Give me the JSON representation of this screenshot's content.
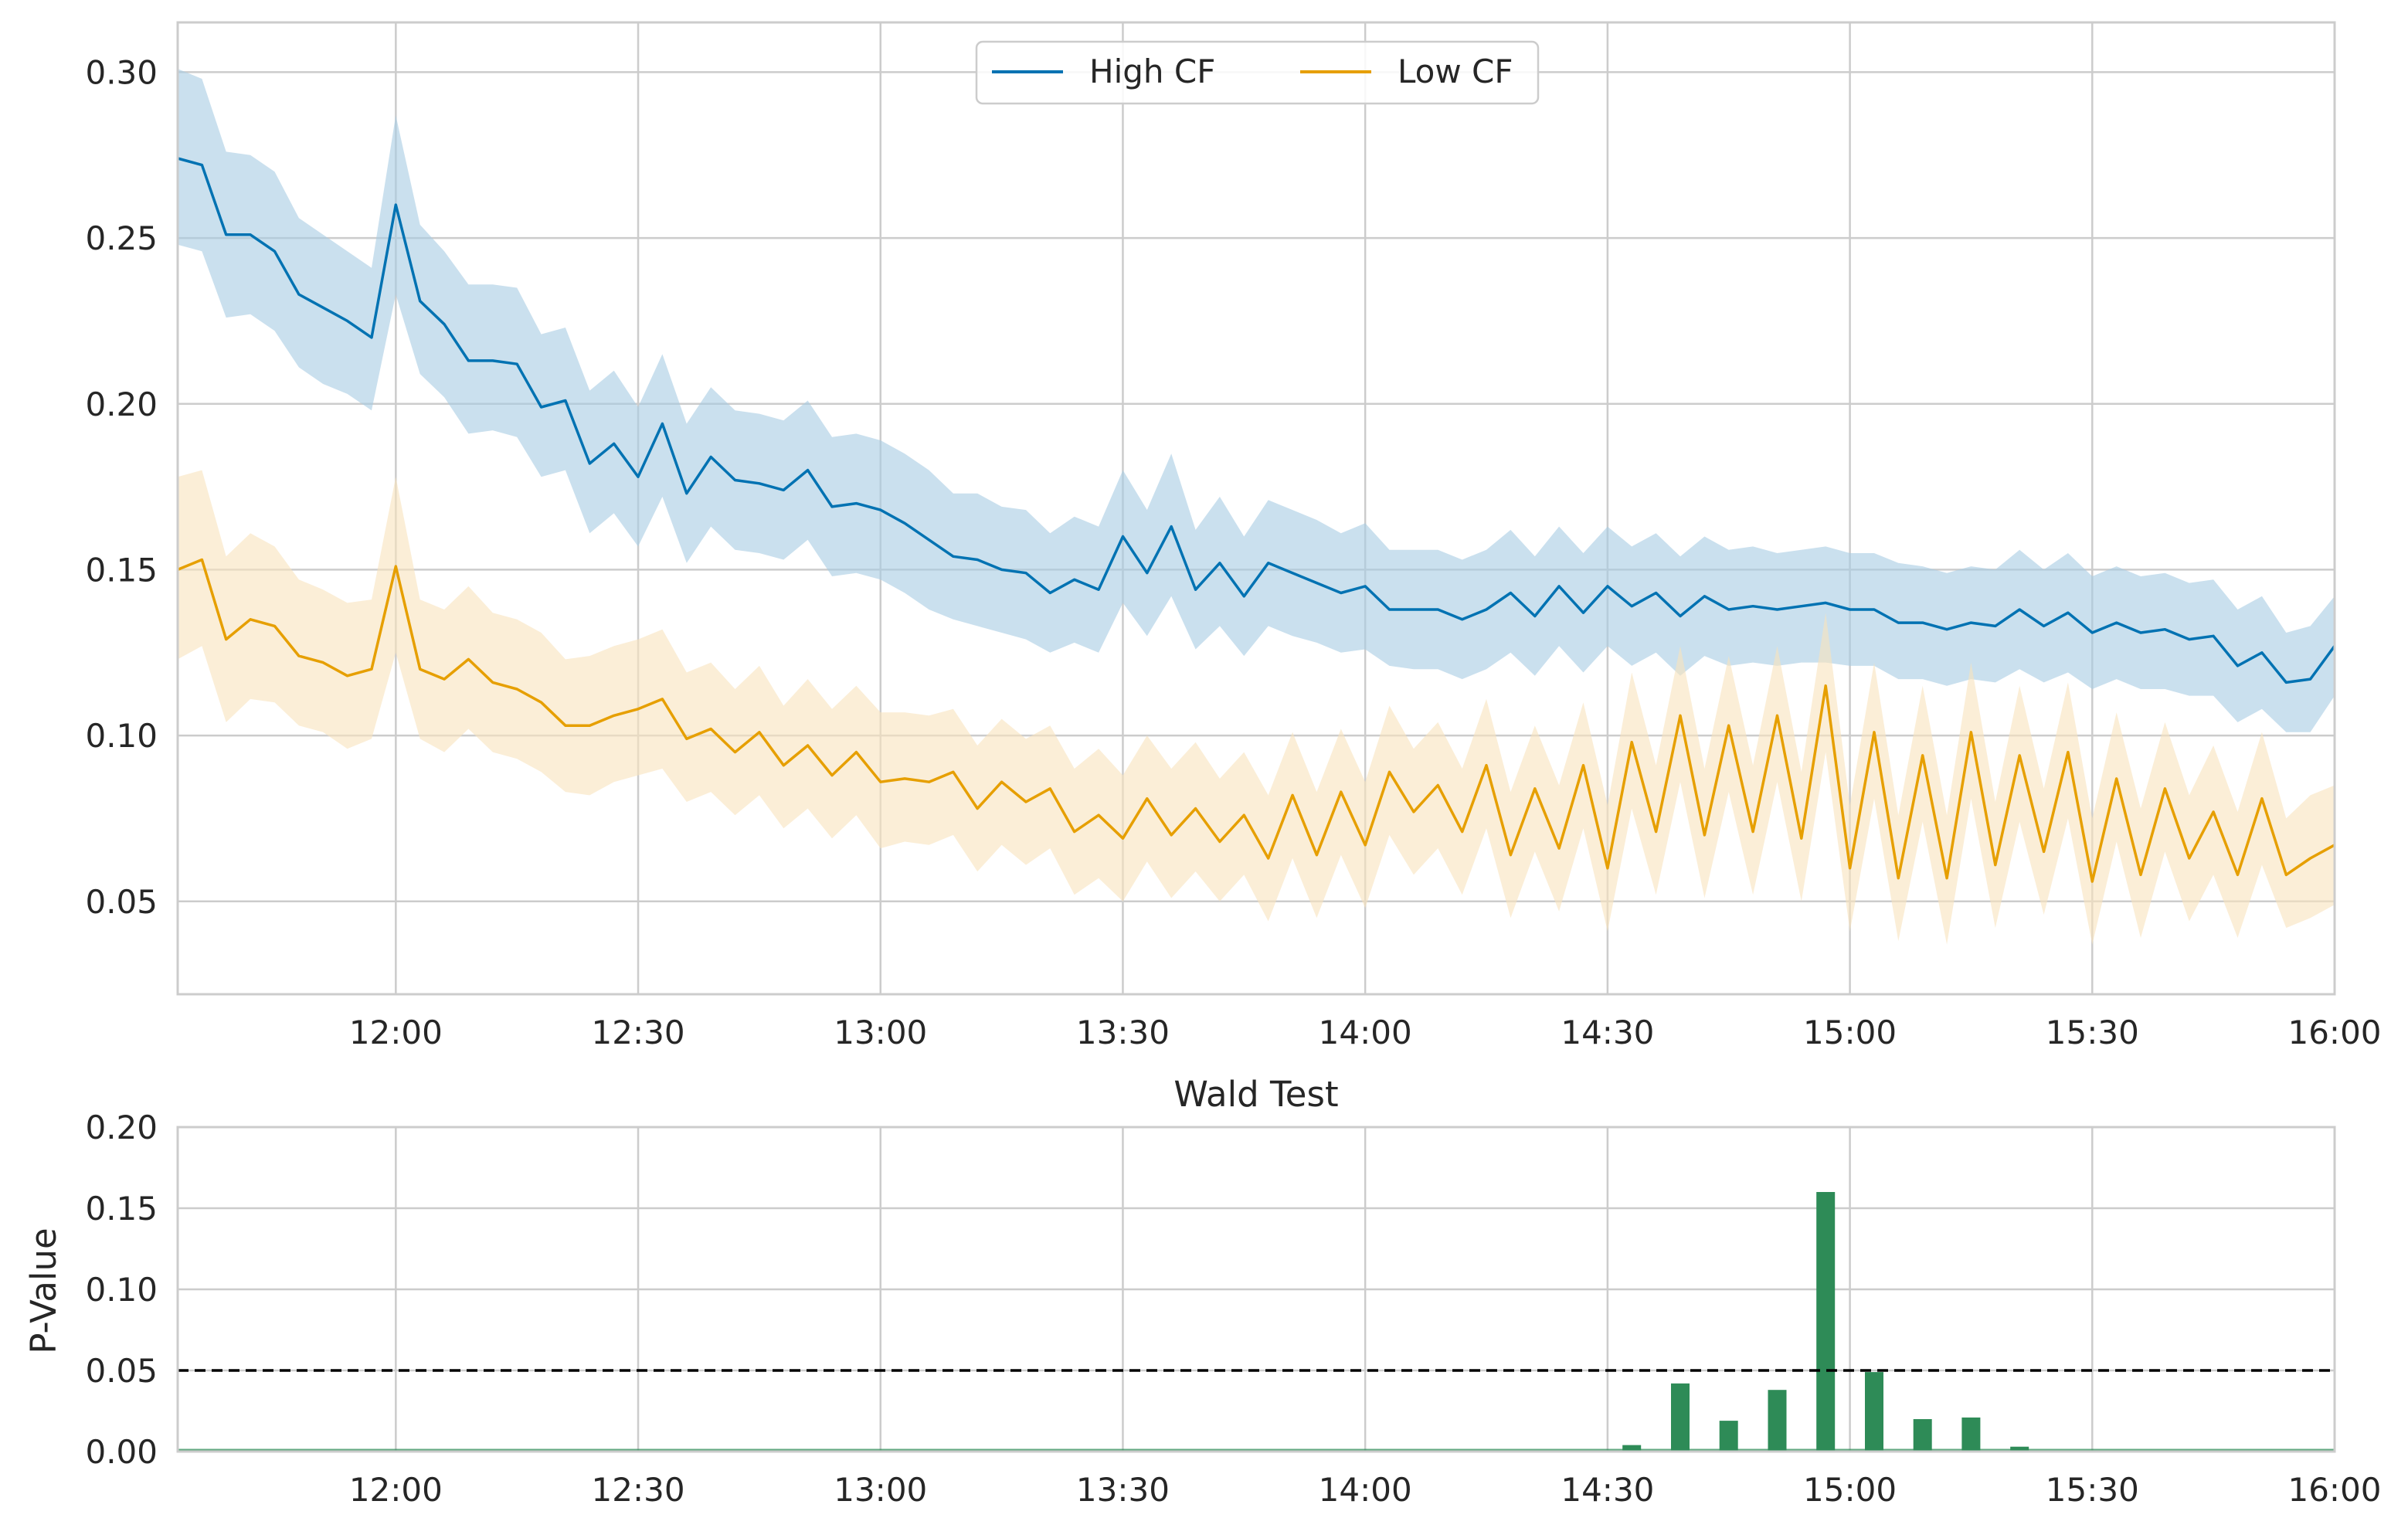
{
  "chart_data": [
    {
      "type": "line",
      "title": "",
      "xlabel": "",
      "ylabel": "",
      "x_range": [
        "11:33",
        "16:00"
      ],
      "ylim": [
        0.022,
        0.315
      ],
      "y_ticks": [
        0.05,
        0.1,
        0.15,
        0.2,
        0.25,
        0.3
      ],
      "y_tick_labels": [
        "0.05",
        "0.10",
        "0.15",
        "0.20",
        "0.25",
        "0.30"
      ],
      "x_ticks": [
        "12:00",
        "12:30",
        "13:00",
        "13:30",
        "14:00",
        "14:30",
        "15:00",
        "15:30",
        "16:00"
      ],
      "grid": true,
      "legend": {
        "placement": "top-center",
        "columns": 2
      },
      "x": [
        "11:33",
        "11:36",
        "11:39",
        "11:42",
        "11:45",
        "11:48",
        "11:51",
        "11:54",
        "11:57",
        "12:00",
        "12:03",
        "12:06",
        "12:09",
        "12:12",
        "12:15",
        "12:18",
        "12:21",
        "12:24",
        "12:27",
        "12:30",
        "12:33",
        "12:36",
        "12:39",
        "12:42",
        "12:45",
        "12:48",
        "12:51",
        "12:54",
        "12:57",
        "13:00",
        "13:03",
        "13:06",
        "13:09",
        "13:12",
        "13:15",
        "13:18",
        "13:21",
        "13:24",
        "13:27",
        "13:30",
        "13:33",
        "13:36",
        "13:39",
        "13:42",
        "13:45",
        "13:48",
        "13:51",
        "13:54",
        "13:57",
        "14:00",
        "14:03",
        "14:06",
        "14:09",
        "14:12",
        "14:15",
        "14:18",
        "14:21",
        "14:24",
        "14:27",
        "14:30",
        "14:33",
        "14:36",
        "14:39",
        "14:42",
        "14:45",
        "14:48",
        "14:51",
        "14:54",
        "14:57",
        "15:00",
        "15:03",
        "15:06",
        "15:09",
        "15:12",
        "15:15",
        "15:18",
        "15:21",
        "15:24",
        "15:27",
        "15:30",
        "15:33",
        "15:36",
        "15:39",
        "15:42",
        "15:45",
        "15:48",
        "15:51",
        "15:54",
        "15:57",
        "16:00"
      ],
      "series": [
        {
          "name": "High CF",
          "color": "#0072b2",
          "band_color": "#a6cbe3",
          "values": [
            0.274,
            0.272,
            0.251,
            0.251,
            0.246,
            0.233,
            0.229,
            0.225,
            0.22,
            0.26,
            0.231,
            0.224,
            0.213,
            0.213,
            0.212,
            0.199,
            0.201,
            0.182,
            0.188,
            0.178,
            0.194,
            0.173,
            0.184,
            0.177,
            0.176,
            0.174,
            0.18,
            0.169,
            0.17,
            0.168,
            0.164,
            0.159,
            0.154,
            0.153,
            0.15,
            0.149,
            0.143,
            0.147,
            0.144,
            0.16,
            0.149,
            0.163,
            0.144,
            0.152,
            0.142,
            0.152,
            0.149,
            0.146,
            0.143,
            0.145,
            0.138,
            0.138,
            0.138,
            0.135,
            0.138,
            0.143,
            0.136,
            0.145,
            0.137,
            0.145,
            0.139,
            0.143,
            0.136,
            0.142,
            0.138,
            0.139,
            0.138,
            0.139,
            0.14,
            0.138,
            0.138,
            0.134,
            0.134,
            0.132,
            0.134,
            0.133,
            0.138,
            0.133,
            0.137,
            0.131,
            0.134,
            0.131,
            0.132,
            0.129,
            0.13,
            0.121,
            0.125,
            0.116,
            0.117,
            0.127
          ],
          "lower": [
            0.248,
            0.246,
            0.226,
            0.227,
            0.222,
            0.211,
            0.206,
            0.203,
            0.198,
            0.233,
            0.209,
            0.202,
            0.191,
            0.192,
            0.19,
            0.178,
            0.18,
            0.161,
            0.167,
            0.157,
            0.172,
            0.152,
            0.163,
            0.156,
            0.155,
            0.153,
            0.159,
            0.148,
            0.149,
            0.147,
            0.143,
            0.138,
            0.135,
            0.133,
            0.131,
            0.129,
            0.125,
            0.128,
            0.125,
            0.14,
            0.13,
            0.142,
            0.126,
            0.133,
            0.124,
            0.133,
            0.13,
            0.128,
            0.125,
            0.126,
            0.121,
            0.12,
            0.12,
            0.117,
            0.12,
            0.125,
            0.118,
            0.127,
            0.119,
            0.127,
            0.121,
            0.125,
            0.118,
            0.124,
            0.121,
            0.122,
            0.121,
            0.122,
            0.122,
            0.121,
            0.121,
            0.117,
            0.117,
            0.115,
            0.117,
            0.116,
            0.12,
            0.116,
            0.119,
            0.114,
            0.117,
            0.114,
            0.114,
            0.112,
            0.112,
            0.104,
            0.108,
            0.101,
            0.101,
            0.112
          ],
          "upper": [
            0.301,
            0.298,
            0.276,
            0.275,
            0.27,
            0.256,
            0.251,
            0.246,
            0.241,
            0.287,
            0.254,
            0.246,
            0.236,
            0.236,
            0.235,
            0.221,
            0.223,
            0.204,
            0.21,
            0.199,
            0.215,
            0.194,
            0.205,
            0.198,
            0.197,
            0.195,
            0.201,
            0.19,
            0.191,
            0.189,
            0.185,
            0.18,
            0.173,
            0.173,
            0.169,
            0.168,
            0.161,
            0.166,
            0.163,
            0.18,
            0.168,
            0.185,
            0.162,
            0.172,
            0.16,
            0.171,
            0.168,
            0.165,
            0.161,
            0.164,
            0.156,
            0.156,
            0.156,
            0.153,
            0.156,
            0.162,
            0.154,
            0.163,
            0.155,
            0.163,
            0.157,
            0.161,
            0.154,
            0.16,
            0.156,
            0.157,
            0.155,
            0.156,
            0.157,
            0.155,
            0.155,
            0.152,
            0.151,
            0.149,
            0.151,
            0.15,
            0.156,
            0.15,
            0.155,
            0.148,
            0.151,
            0.148,
            0.149,
            0.146,
            0.147,
            0.138,
            0.142,
            0.131,
            0.133,
            0.142
          ]
        },
        {
          "name": "Low CF",
          "color": "#e69f00",
          "band_color": "#f9e2bd",
          "values": [
            0.15,
            0.153,
            0.129,
            0.135,
            0.133,
            0.124,
            0.122,
            0.118,
            0.12,
            0.151,
            0.12,
            0.117,
            0.123,
            0.116,
            0.114,
            0.11,
            0.103,
            0.103,
            0.106,
            0.108,
            0.111,
            0.099,
            0.102,
            0.095,
            0.101,
            0.091,
            0.097,
            0.088,
            0.095,
            0.086,
            0.087,
            0.086,
            0.089,
            0.078,
            0.086,
            0.08,
            0.084,
            0.071,
            0.076,
            0.069,
            0.081,
            0.07,
            0.078,
            0.068,
            0.076,
            0.063,
            0.082,
            0.064,
            0.083,
            0.067,
            0.089,
            0.077,
            0.085,
            0.071,
            0.091,
            0.064,
            0.084,
            0.066,
            0.091,
            0.06,
            0.098,
            0.071,
            0.106,
            0.07,
            0.103,
            0.071,
            0.106,
            0.069,
            0.115,
            0.06,
            0.101,
            0.057,
            0.094,
            0.057,
            0.101,
            0.061,
            0.094,
            0.065,
            0.095,
            0.056,
            0.087,
            0.058,
            0.084,
            0.063,
            0.077,
            0.058,
            0.081,
            0.058,
            0.063,
            0.067
          ],
          "lower": [
            0.123,
            0.127,
            0.104,
            0.111,
            0.11,
            0.103,
            0.101,
            0.096,
            0.099,
            0.125,
            0.099,
            0.095,
            0.102,
            0.095,
            0.093,
            0.089,
            0.083,
            0.082,
            0.086,
            0.088,
            0.09,
            0.08,
            0.083,
            0.076,
            0.082,
            0.072,
            0.078,
            0.069,
            0.076,
            0.066,
            0.068,
            0.067,
            0.07,
            0.059,
            0.067,
            0.061,
            0.066,
            0.052,
            0.057,
            0.05,
            0.062,
            0.051,
            0.059,
            0.05,
            0.058,
            0.044,
            0.063,
            0.045,
            0.064,
            0.048,
            0.07,
            0.058,
            0.066,
            0.052,
            0.072,
            0.045,
            0.065,
            0.047,
            0.072,
            0.041,
            0.078,
            0.052,
            0.086,
            0.051,
            0.083,
            0.052,
            0.086,
            0.05,
            0.095,
            0.041,
            0.081,
            0.038,
            0.074,
            0.037,
            0.081,
            0.042,
            0.074,
            0.046,
            0.075,
            0.037,
            0.068,
            0.039,
            0.065,
            0.044,
            0.058,
            0.039,
            0.061,
            0.042,
            0.045,
            0.049
          ],
          "upper": [
            0.178,
            0.18,
            0.154,
            0.161,
            0.157,
            0.147,
            0.144,
            0.14,
            0.141,
            0.178,
            0.141,
            0.138,
            0.145,
            0.137,
            0.135,
            0.131,
            0.123,
            0.124,
            0.127,
            0.129,
            0.132,
            0.119,
            0.122,
            0.114,
            0.121,
            0.109,
            0.117,
            0.108,
            0.115,
            0.107,
            0.107,
            0.106,
            0.108,
            0.097,
            0.105,
            0.099,
            0.103,
            0.09,
            0.096,
            0.088,
            0.1,
            0.09,
            0.098,
            0.087,
            0.095,
            0.082,
            0.101,
            0.083,
            0.102,
            0.086,
            0.109,
            0.096,
            0.104,
            0.09,
            0.111,
            0.083,
            0.103,
            0.085,
            0.11,
            0.079,
            0.119,
            0.091,
            0.127,
            0.09,
            0.124,
            0.091,
            0.127,
            0.089,
            0.137,
            0.079,
            0.122,
            0.076,
            0.115,
            0.076,
            0.122,
            0.08,
            0.115,
            0.084,
            0.116,
            0.075,
            0.107,
            0.078,
            0.104,
            0.082,
            0.097,
            0.077,
            0.101,
            0.075,
            0.082,
            0.085
          ]
        }
      ]
    },
    {
      "type": "bar",
      "title": "Wald Test",
      "xlabel": "",
      "ylabel": "P-Value",
      "x_range": [
        "11:33",
        "16:00"
      ],
      "ylim": [
        0,
        0.2
      ],
      "y_ticks": [
        0.0,
        0.05,
        0.1,
        0.15,
        0.2
      ],
      "y_tick_labels": [
        "0.00",
        "0.05",
        "0.10",
        "0.15",
        "0.20"
      ],
      "x_ticks": [
        "12:00",
        "12:30",
        "13:00",
        "13:30",
        "14:00",
        "14:30",
        "15:00",
        "15:30",
        "16:00"
      ],
      "grid": true,
      "bar_color": "#2e8b57",
      "reference_line": {
        "value": 0.05,
        "style": "dashed",
        "color": "#000000"
      },
      "bars": [
        {
          "x": "14:33",
          "value": 0.004
        },
        {
          "x": "14:39",
          "value": 0.042
        },
        {
          "x": "14:45",
          "value": 0.019
        },
        {
          "x": "14:51",
          "value": 0.038
        },
        {
          "x": "14:57",
          "value": 0.16
        },
        {
          "x": "15:03",
          "value": 0.049
        },
        {
          "x": "15:09",
          "value": 0.02
        },
        {
          "x": "15:15",
          "value": 0.021
        },
        {
          "x": "15:21",
          "value": 0.003
        }
      ]
    }
  ]
}
